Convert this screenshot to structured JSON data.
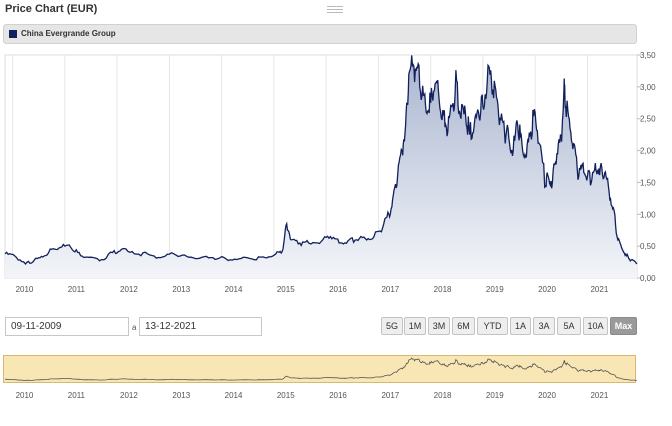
{
  "header": {
    "title": "Price Chart (EUR)"
  },
  "legend": {
    "series_name": "China Evergrande Group",
    "swatch_color": "#12205c"
  },
  "controls": {
    "from_date": "09-11-2009",
    "separator": "a",
    "to_date": "13-12-2021",
    "ranges": [
      "5G",
      "1M",
      "3M",
      "6M",
      "YTD",
      "1A",
      "3A",
      "5A",
      "10A",
      "Max"
    ],
    "active_range": "Max"
  },
  "colors": {
    "line": "#12205c",
    "area_top": "#a9b5cf",
    "area_bottom": "#f3f5f9",
    "navigator_fill": "#f8e6b4",
    "navigator_line": "#555555"
  },
  "chart_data": {
    "type": "area",
    "series": [
      {
        "name": "China Evergrande Group",
        "x": [
          "2009-11-09",
          "2010-01-15",
          "2010-04-01",
          "2010-06-01",
          "2010-08-01",
          "2010-10-01",
          "2010-12-01",
          "2011-02-01",
          "2011-04-01",
          "2011-06-01",
          "2011-09-01",
          "2011-12-01",
          "2012-02-01",
          "2012-05-01",
          "2012-08-01",
          "2012-11-01",
          "2013-02-01",
          "2013-05-01",
          "2013-08-01",
          "2013-11-01",
          "2014-02-01",
          "2014-05-01",
          "2014-08-01",
          "2014-11-01",
          "2015-01-15",
          "2015-03-01",
          "2015-04-01",
          "2015-05-01",
          "2015-07-01",
          "2015-09-01",
          "2015-12-01",
          "2016-02-01",
          "2016-04-01",
          "2016-06-01",
          "2016-08-01",
          "2016-10-01",
          "2016-12-01",
          "2017-02-01",
          "2017-03-15",
          "2017-04-15",
          "2017-05-15",
          "2017-06-15",
          "2017-07-10",
          "2017-08-01",
          "2017-09-01",
          "2017-10-01",
          "2017-11-01",
          "2017-12-01",
          "2018-01-01",
          "2018-02-01",
          "2018-03-01",
          "2018-04-01",
          "2018-05-01",
          "2018-06-01",
          "2018-07-01",
          "2018-08-01",
          "2018-09-01",
          "2018-10-01",
          "2018-11-01",
          "2018-12-01",
          "2019-01-01",
          "2019-02-01",
          "2019-03-01",
          "2019-04-01",
          "2019-05-01",
          "2019-06-01",
          "2019-07-01",
          "2019-08-01",
          "2019-09-01",
          "2019-10-01",
          "2019-11-01",
          "2019-12-01",
          "2020-01-01",
          "2020-02-01",
          "2020-03-15",
          "2020-04-01",
          "2020-05-01",
          "2020-06-01",
          "2020-07-01",
          "2020-07-20",
          "2020-08-01",
          "2020-09-01",
          "2020-10-01",
          "2020-11-01",
          "2020-12-01",
          "2021-01-01",
          "2021-02-01",
          "2021-03-01",
          "2021-04-01",
          "2021-05-01",
          "2021-06-01",
          "2021-07-01",
          "2021-08-01",
          "2021-09-01",
          "2021-10-01",
          "2021-11-01",
          "2021-12-13"
        ],
        "y": [
          0.38,
          0.35,
          0.22,
          0.28,
          0.33,
          0.45,
          0.48,
          0.52,
          0.4,
          0.33,
          0.27,
          0.4,
          0.45,
          0.38,
          0.38,
          0.32,
          0.38,
          0.34,
          0.31,
          0.32,
          0.3,
          0.3,
          0.3,
          0.32,
          0.38,
          0.42,
          0.85,
          0.6,
          0.55,
          0.55,
          0.58,
          0.65,
          0.55,
          0.58,
          0.6,
          0.62,
          0.65,
          0.8,
          1.0,
          1.3,
          1.6,
          2.0,
          2.4,
          3.2,
          3.35,
          3.3,
          2.85,
          2.6,
          2.75,
          3.05,
          2.8,
          2.55,
          2.3,
          2.7,
          3.1,
          2.5,
          2.6,
          2.25,
          2.4,
          2.6,
          2.7,
          3.1,
          3.15,
          2.95,
          2.5,
          2.3,
          2.2,
          2.0,
          2.4,
          2.1,
          1.9,
          2.3,
          2.6,
          2.1,
          1.45,
          1.6,
          1.5,
          1.95,
          2.2,
          2.95,
          2.7,
          2.35,
          2.1,
          1.6,
          1.8,
          1.6,
          1.55,
          1.7,
          1.75,
          1.65,
          1.35,
          1.1,
          0.6,
          0.45,
          0.35,
          0.28,
          0.22
        ]
      }
    ],
    "xlabel": "",
    "ylabel": "",
    "y_ticks": [
      "0,00",
      "0,50",
      "1,00",
      "1,50",
      "2,00",
      "2,50",
      "3,00",
      "3,50"
    ],
    "x_ticks": [
      "2010",
      "2011",
      "2012",
      "2013",
      "2014",
      "2015",
      "2016",
      "2017",
      "2018",
      "2019",
      "2020",
      "2021"
    ],
    "ylim": [
      0,
      3.5
    ],
    "xlim": [
      "2009-11-09",
      "2021-12-13"
    ],
    "grid": true
  }
}
